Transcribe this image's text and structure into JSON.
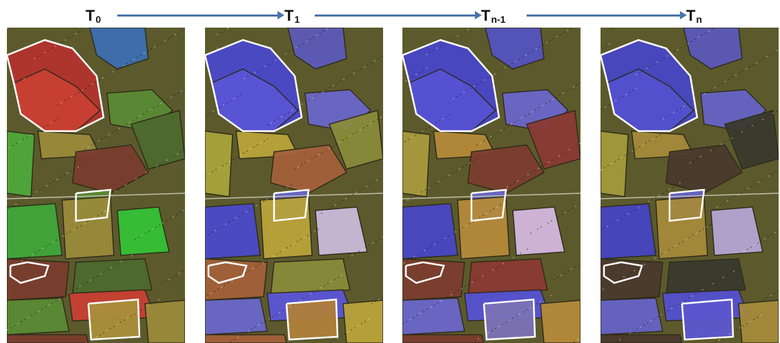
{
  "timeline": {
    "labels": [
      {
        "main": "T",
        "sub": "0"
      },
      {
        "main": "T",
        "sub": "1"
      },
      {
        "main": "T",
        "sub": "n-1"
      },
      {
        "main": "T",
        "sub": "n"
      }
    ],
    "arrow_color": "#4a74a8"
  },
  "panels": [
    {
      "time": "T0",
      "palette": {
        "big": "#b3342f",
        "mid": "#c84033",
        "north_east": "#3d6fb0",
        "left_strip": "#4ea83a",
        "lower_left": "#3fa63a",
        "lower_right": "#35c236",
        "field_a": "#7a3d2e",
        "field_b": "#5a8a34",
        "field_c": "#9a8a3a",
        "field_d": "#4d6a2e",
        "bottom_box": "#a98f3a"
      }
    },
    {
      "time": "T1",
      "palette": {
        "big": "#4a49c9",
        "mid": "#5a55d6",
        "north_east": "#5b5ab8",
        "left_strip": "#a8a33a",
        "lower_left": "#4b4ac8",
        "lower_right": "#c9b9d9",
        "field_a": "#a3613a",
        "field_b": "#6a67c9",
        "field_c": "#b9a33a",
        "field_d": "#8a8a3a",
        "bottom_box": "#b0803a"
      }
    },
    {
      "time": "Tn-1",
      "palette": {
        "big": "#4847c7",
        "mid": "#5652d3",
        "north_east": "#5453bf",
        "left_strip": "#a79a3c",
        "lower_left": "#4847c4",
        "lower_right": "#d4b7dd",
        "field_a": "#7b3d2e",
        "field_b": "#6a66c9",
        "field_c": "#b58a3a",
        "field_d": "#8a3a33",
        "bottom_box": "#7c72b8"
      }
    },
    {
      "time": "Tn",
      "palette": {
        "big": "#4746c3",
        "mid": "#5451cf",
        "north_east": "#5a58b8",
        "left_strip": "#a39a3a",
        "lower_left": "#4544c2",
        "lower_right": "#b4a6d3",
        "field_a": "#4b3a2e",
        "field_b": "#6663c6",
        "field_c": "#a58a3a",
        "field_d": "#3a3a2e",
        "bottom_box": "#5d57cf"
      }
    }
  ]
}
